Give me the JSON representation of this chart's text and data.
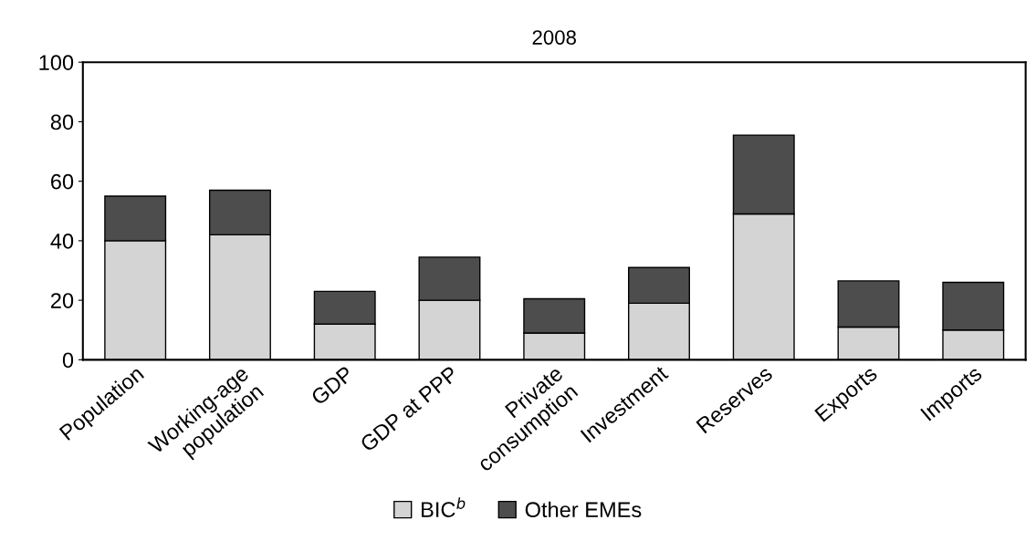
{
  "chart_data": {
    "type": "bar",
    "title": "2008",
    "stacked": true,
    "categories": [
      "Population",
      "Working-age\npopulation",
      "GDP",
      "GDP at PPP",
      "Private\nconsumption",
      "Investment",
      "Reserves",
      "Exports",
      "Imports"
    ],
    "series": [
      {
        "name": "BIC$^{b}$",
        "color": "#d4d4d4",
        "values": [
          40,
          42,
          12,
          20,
          9,
          19,
          49,
          11,
          10
        ]
      },
      {
        "name": "Other EMEs",
        "color": "#4d4d4d",
        "values": [
          15,
          15,
          11,
          14.5,
          11.5,
          12,
          26.5,
          15.5,
          16
        ]
      }
    ],
    "ylim": [
      0,
      100
    ],
    "yticks": [
      0,
      20,
      40,
      60,
      80,
      100
    ],
    "grid": false,
    "legend": "bottom"
  }
}
